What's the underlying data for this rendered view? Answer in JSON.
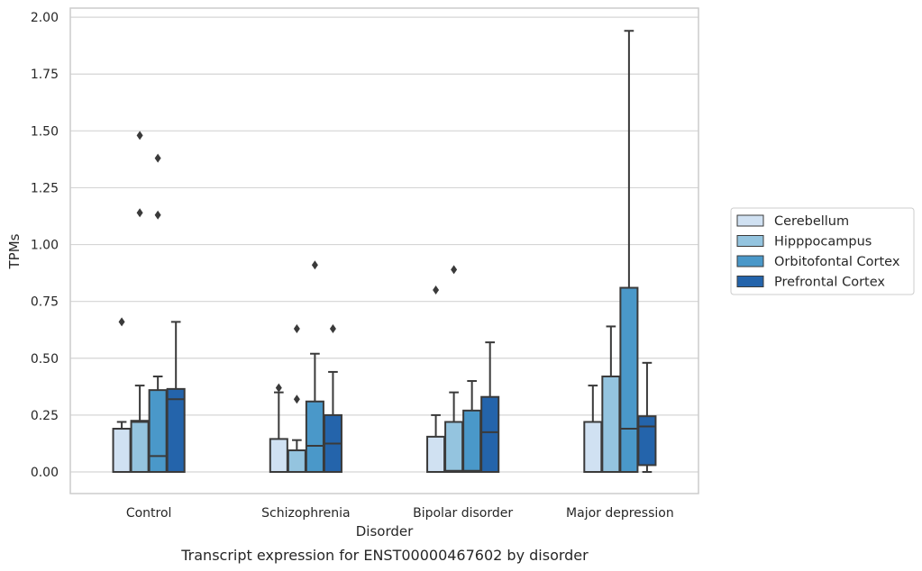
{
  "caption": "Transcript expression for ENST00000467602 by disorder",
  "chart_data": {
    "type": "box",
    "xlabel": "Disorder",
    "ylabel": "TPMs",
    "ylim": [
      -0.095,
      2.04
    ],
    "yticks": [
      "0.00",
      "0.25",
      "0.50",
      "0.75",
      "1.00",
      "1.25",
      "1.50",
      "1.75",
      "2.00"
    ],
    "ytick_values": [
      0,
      0.25,
      0.5,
      0.75,
      1.0,
      1.25,
      1.5,
      1.75,
      2.0
    ],
    "grid": "horizontal",
    "legend_position": "right",
    "categories": [
      "Control",
      "Schizophrenia",
      "Bipolar disorder",
      "Major depression"
    ],
    "series": [
      {
        "name": "Cerebellum",
        "color": "#d0e1f2",
        "boxes": [
          {
            "whisker_low": 0.0,
            "q1": 0.0,
            "median": 0.19,
            "q3": 0.19,
            "whisker_high": 0.22,
            "outliers": [
              0.66
            ]
          },
          {
            "whisker_low": 0.0,
            "q1": 0.0,
            "median": 0.0,
            "q3": 0.145,
            "whisker_high": 0.35,
            "outliers": [
              0.37
            ]
          },
          {
            "whisker_low": 0.0,
            "q1": 0.0,
            "median": 0.0,
            "q3": 0.155,
            "whisker_high": 0.25,
            "outliers": [
              0.8
            ]
          },
          {
            "whisker_low": 0.0,
            "q1": 0.0,
            "median": 0.0,
            "q3": 0.22,
            "whisker_high": 0.38,
            "outliers": []
          }
        ]
      },
      {
        "name": "Hipppocampus",
        "color": "#94c4df",
        "boxes": [
          {
            "whisker_low": 0.0,
            "q1": 0.0,
            "median": 0.22,
            "q3": 0.225,
            "whisker_high": 0.38,
            "outliers": [
              1.14,
              1.48
            ]
          },
          {
            "whisker_low": 0.0,
            "q1": 0.0,
            "median": 0.095,
            "q3": 0.095,
            "whisker_high": 0.14,
            "outliers": [
              0.32,
              0.63
            ]
          },
          {
            "whisker_low": 0.0,
            "q1": 0.0,
            "median": 0.005,
            "q3": 0.22,
            "whisker_high": 0.35,
            "outliers": [
              0.89
            ]
          },
          {
            "whisker_low": 0.0,
            "q1": 0.0,
            "median": 0.0,
            "q3": 0.42,
            "whisker_high": 0.64,
            "outliers": []
          }
        ]
      },
      {
        "name": "Orbitofontal Cortex",
        "color": "#4a98c9",
        "boxes": [
          {
            "whisker_low": 0.0,
            "q1": 0.0,
            "median": 0.07,
            "q3": 0.36,
            "whisker_high": 0.42,
            "outliers": [
              1.13,
              1.38
            ]
          },
          {
            "whisker_low": 0.0,
            "q1": 0.0,
            "median": 0.115,
            "q3": 0.31,
            "whisker_high": 0.52,
            "outliers": [
              0.91
            ]
          },
          {
            "whisker_low": 0.0,
            "q1": 0.0,
            "median": 0.005,
            "q3": 0.27,
            "whisker_high": 0.4,
            "outliers": []
          },
          {
            "whisker_low": 0.0,
            "q1": 0.0,
            "median": 0.19,
            "q3": 0.81,
            "whisker_high": 1.94,
            "outliers": []
          }
        ]
      },
      {
        "name": "Prefrontal Cortex",
        "color": "#2464ab",
        "boxes": [
          {
            "whisker_low": 0.0,
            "q1": 0.0,
            "median": 0.32,
            "q3": 0.365,
            "whisker_high": 0.66,
            "outliers": []
          },
          {
            "whisker_low": 0.0,
            "q1": 0.0,
            "median": 0.125,
            "q3": 0.25,
            "whisker_high": 0.44,
            "outliers": [
              0.63
            ]
          },
          {
            "whisker_low": 0.0,
            "q1": 0.0,
            "median": 0.175,
            "q3": 0.33,
            "whisker_high": 0.57,
            "outliers": []
          },
          {
            "whisker_low": 0.0,
            "q1": 0.03,
            "median": 0.2,
            "q3": 0.245,
            "whisker_high": 0.48,
            "outliers": []
          }
        ]
      }
    ]
  }
}
